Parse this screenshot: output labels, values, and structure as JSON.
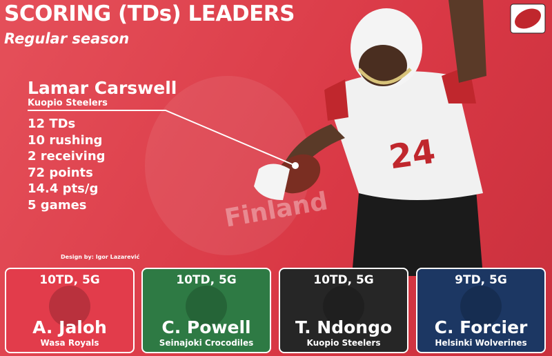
{
  "header": {
    "title": "SCORING (TDs) LEADERS",
    "subtitle": "Regular season"
  },
  "leader": {
    "name": "Lamar Carswell",
    "team": "Kuopio Steelers",
    "stats": [
      "12 TDs",
      "10 rushing",
      "2 receiving",
      "72 points",
      "14.4 pts/g",
      "5 games"
    ]
  },
  "watermark": "Finland",
  "credit": "Design by: Igor Lazarević",
  "jersey_number": "24",
  "cards": [
    {
      "stat": "10TD, 5G",
      "name": "A. Jaloh",
      "team": "Wasa Royals"
    },
    {
      "stat": "10TD, 5G",
      "name": "C. Powell",
      "team": "Seinajoki Crocodiles"
    },
    {
      "stat": "10TD, 5G",
      "name": "T. Ndongo",
      "team": "Kuopio Steelers"
    },
    {
      "stat": "9TD, 5G",
      "name": "C. Forcier",
      "team": "Helsinki Wolverines"
    }
  ]
}
